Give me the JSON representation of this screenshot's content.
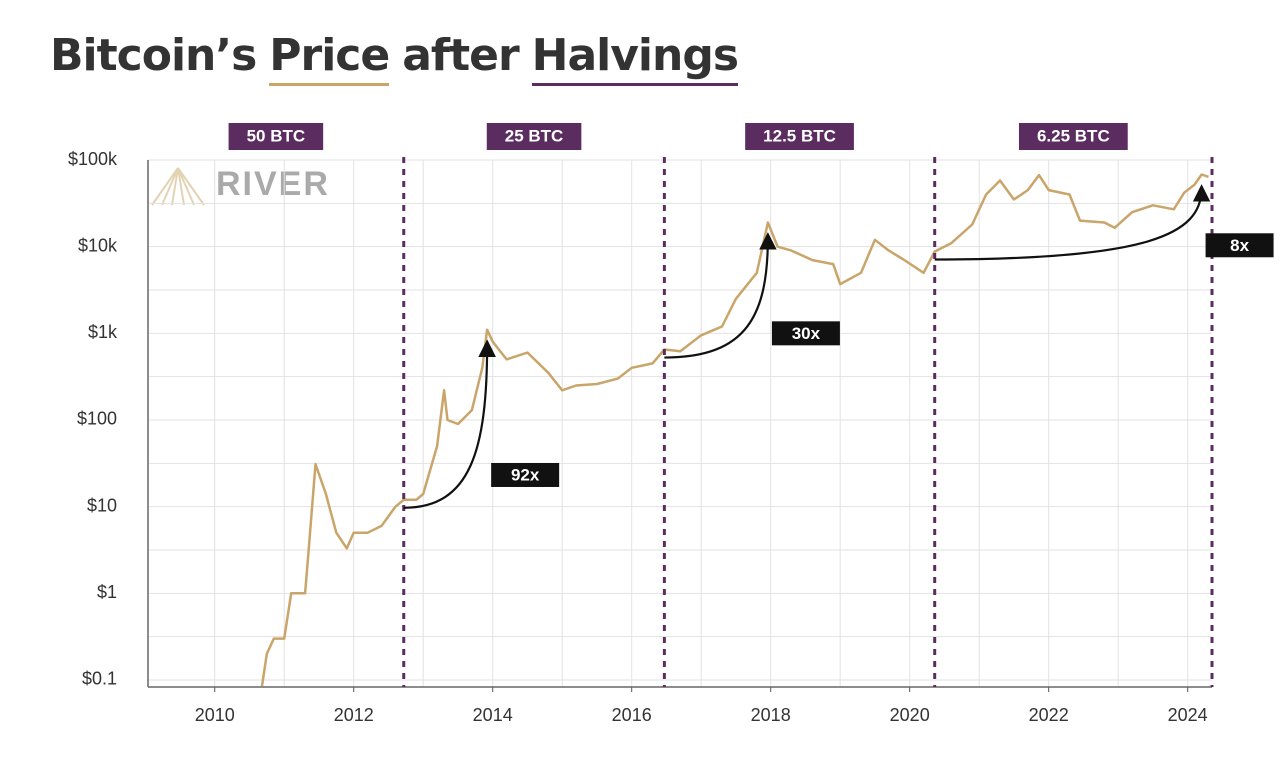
{
  "chart_data": {
    "type": "line",
    "title": [
      "Bitcoin’s",
      "Price",
      "after",
      "Halvings"
    ],
    "title_underline_colors": [
      null,
      "#c9a56a",
      null,
      "#5b2c5f"
    ],
    "logo": "RIVER",
    "log_y": true,
    "grid": true,
    "xlim": [
      2009.04,
      2024.35
    ],
    "xticks": [
      2010,
      2012,
      2014,
      2016,
      2018,
      2020,
      2022,
      2024
    ],
    "xgrid": [
      2010,
      2011,
      2012,
      2013,
      2014,
      2015,
      2016,
      2017,
      2018,
      2019,
      2020,
      2021,
      2022,
      2023,
      2024
    ],
    "ylim": [
      0.083,
      100000
    ],
    "yticks": [
      {
        "value": 0.1,
        "label": "$0.1"
      },
      {
        "value": 1,
        "label": "$1"
      },
      {
        "value": 10,
        "label": "$10"
      },
      {
        "value": 100,
        "label": "$100"
      },
      {
        "value": 1000,
        "label": "$1k"
      },
      {
        "value": 10000,
        "label": "$10k"
      },
      {
        "value": 100000,
        "label": "$100k"
      }
    ],
    "yminor": [
      0.3162,
      3.162,
      31.62,
      316.2,
      3162,
      31623
    ],
    "halvings": [
      2012.72,
      2016.47,
      2020.36,
      2024.35
    ],
    "rewards": [
      "50 BTC",
      "25 BTC",
      "12.5 BTC",
      "6.25 BTC"
    ],
    "multipliers": [
      "92x",
      "30x",
      "8x"
    ],
    "halving_color": "#5b2c5f",
    "series": [
      {
        "color": "#c9a56a",
        "x": [
          2010.68,
          2010.75,
          2010.85,
          2011.0,
          2011.1,
          2011.3,
          2011.35,
          2011.45,
          2011.6,
          2011.75,
          2011.9,
          2012.0,
          2012.2,
          2012.4,
          2012.6,
          2012.72,
          2012.9,
          2013.0,
          2013.2,
          2013.3,
          2013.35,
          2013.5,
          2013.7,
          2013.85,
          2013.92,
          2014.0,
          2014.2,
          2014.5,
          2014.8,
          2015.0,
          2015.2,
          2015.5,
          2015.8,
          2016.0,
          2016.3,
          2016.47,
          2016.7,
          2017.0,
          2017.3,
          2017.5,
          2017.8,
          2017.96,
          2018.1,
          2018.3,
          2018.6,
          2018.9,
          2019.0,
          2019.3,
          2019.5,
          2019.7,
          2019.9,
          2020.2,
          2020.36,
          2020.6,
          2020.9,
          2021.1,
          2021.3,
          2021.5,
          2021.7,
          2021.86,
          2022.0,
          2022.3,
          2022.45,
          2022.8,
          2022.95,
          2023.2,
          2023.5,
          2023.8,
          2023.95,
          2024.1,
          2024.2,
          2024.3
        ],
        "values": [
          0.085,
          0.2,
          0.3,
          0.3,
          1.0,
          1.0,
          3,
          31,
          14,
          5,
          3.3,
          5,
          5,
          6,
          10,
          12,
          12,
          14,
          50,
          220,
          100,
          90,
          130,
          400,
          1100,
          800,
          500,
          600,
          350,
          220,
          250,
          260,
          300,
          400,
          450,
          650,
          620,
          950,
          1200,
          2500,
          5000,
          19000,
          10000,
          9000,
          7000,
          6300,
          3700,
          5000,
          12000,
          9000,
          7200,
          5000,
          8800,
          11000,
          18000,
          40000,
          58000,
          35000,
          45000,
          67000,
          45000,
          40000,
          20000,
          19000,
          16500,
          25000,
          30000,
          27000,
          42000,
          52000,
          68000,
          64000
        ]
      }
    ]
  }
}
